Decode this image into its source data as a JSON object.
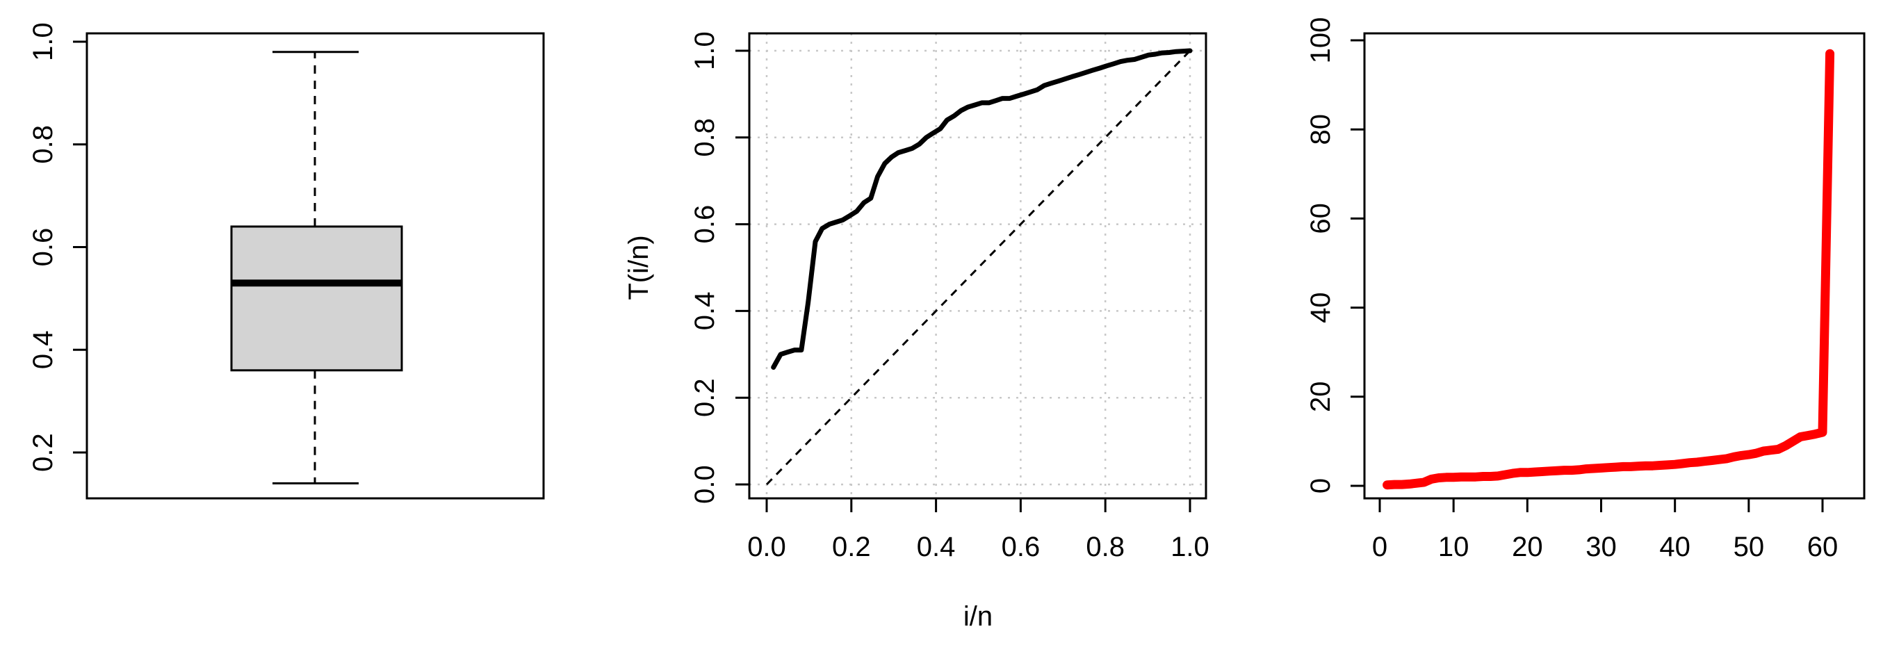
{
  "chart_data": [
    {
      "type": "box",
      "ylim": [
        0.1,
        1.0
      ],
      "yticks": [
        "0.2",
        "0.4",
        "0.6",
        "0.8",
        "1.0"
      ],
      "ytick_values": [
        0.2,
        0.4,
        0.6,
        0.8,
        1.0
      ],
      "stats": {
        "min": 0.14,
        "q1": 0.36,
        "median": 0.53,
        "q3": 0.64,
        "max": 0.98
      },
      "box_color": "#d3d3d3",
      "grid": false
    },
    {
      "type": "line",
      "xlabel": "i/n",
      "ylabel": "T(i/n)",
      "xlim": [
        0.0,
        1.0
      ],
      "ylim": [
        0.0,
        1.0
      ],
      "xticks": [
        "0.0",
        "0.2",
        "0.4",
        "0.6",
        "0.8",
        "1.0"
      ],
      "xtick_values": [
        0.0,
        0.2,
        0.4,
        0.6,
        0.8,
        1.0
      ],
      "yticks": [
        "0.0",
        "0.2",
        "0.4",
        "0.6",
        "0.8",
        "1.0"
      ],
      "ytick_values": [
        0.0,
        0.2,
        0.4,
        0.6,
        0.8,
        1.0
      ],
      "grid": true,
      "series": [
        {
          "color": "#000000",
          "style": "solid",
          "x": [
            0.016,
            0.033,
            0.049,
            0.066,
            0.082,
            0.098,
            0.115,
            0.131,
            0.148,
            0.164,
            0.18,
            0.197,
            0.213,
            0.23,
            0.246,
            0.262,
            0.279,
            0.295,
            0.311,
            0.328,
            0.344,
            0.361,
            0.377,
            0.393,
            0.41,
            0.426,
            0.443,
            0.459,
            0.475,
            0.492,
            0.508,
            0.525,
            0.541,
            0.557,
            0.574,
            0.59,
            0.607,
            0.623,
            0.639,
            0.656,
            0.672,
            0.689,
            0.705,
            0.721,
            0.738,
            0.754,
            0.77,
            0.787,
            0.803,
            0.82,
            0.836,
            0.852,
            0.869,
            0.885,
            0.902,
            0.918,
            0.934,
            0.951,
            0.967,
            0.984,
            1.0
          ],
          "y": [
            0.27,
            0.3,
            0.305,
            0.31,
            0.31,
            0.42,
            0.56,
            0.59,
            0.6,
            0.605,
            0.61,
            0.62,
            0.63,
            0.65,
            0.66,
            0.71,
            0.74,
            0.755,
            0.765,
            0.77,
            0.775,
            0.785,
            0.8,
            0.81,
            0.82,
            0.84,
            0.85,
            0.862,
            0.87,
            0.875,
            0.88,
            0.88,
            0.885,
            0.89,
            0.89,
            0.895,
            0.9,
            0.905,
            0.91,
            0.92,
            0.925,
            0.93,
            0.935,
            0.94,
            0.945,
            0.95,
            0.955,
            0.96,
            0.965,
            0.97,
            0.975,
            0.978,
            0.98,
            0.985,
            0.99,
            0.992,
            0.995,
            0.996,
            0.998,
            0.999,
            1.0
          ]
        },
        {
          "color": "#000000",
          "style": "dashed",
          "x": [
            0.0,
            1.0
          ],
          "y": [
            0.0,
            1.0
          ]
        }
      ]
    },
    {
      "type": "line",
      "xlim": [
        0,
        63
      ],
      "ylim": [
        0,
        100
      ],
      "xticks": [
        "0",
        "10",
        "20",
        "30",
        "40",
        "50",
        "60"
      ],
      "xtick_values": [
        0,
        10,
        20,
        30,
        40,
        50,
        60
      ],
      "yticks": [
        "0",
        "20",
        "40",
        "60",
        "80",
        "100"
      ],
      "ytick_values": [
        0,
        20,
        40,
        60,
        80,
        100
      ],
      "grid": false,
      "series": [
        {
          "color": "#ff0000",
          "style": "solid",
          "x": [
            1,
            2,
            3,
            4,
            5,
            6,
            7,
            8,
            9,
            10,
            11,
            12,
            13,
            14,
            15,
            16,
            17,
            18,
            19,
            20,
            21,
            22,
            23,
            24,
            25,
            26,
            27,
            28,
            29,
            30,
            31,
            32,
            33,
            34,
            35,
            36,
            37,
            38,
            39,
            40,
            41,
            42,
            43,
            44,
            45,
            46,
            47,
            48,
            49,
            50,
            51,
            52,
            53,
            54,
            55,
            56,
            57,
            58,
            59,
            60,
            61
          ],
          "y": [
            0.2,
            0.3,
            0.3,
            0.4,
            0.6,
            0.8,
            1.5,
            1.8,
            1.9,
            1.9,
            2.0,
            2.0,
            2.0,
            2.1,
            2.1,
            2.2,
            2.5,
            2.8,
            3.0,
            3.0,
            3.1,
            3.2,
            3.3,
            3.4,
            3.5,
            3.5,
            3.6,
            3.8,
            3.9,
            4.0,
            4.1,
            4.2,
            4.3,
            4.3,
            4.4,
            4.5,
            4.5,
            4.6,
            4.7,
            4.8,
            5.0,
            5.2,
            5.3,
            5.5,
            5.7,
            5.9,
            6.1,
            6.5,
            6.8,
            7.0,
            7.3,
            7.8,
            8.0,
            8.2,
            9.0,
            10.0,
            11.0,
            11.3,
            11.6,
            12.0,
            97.0
          ]
        }
      ]
    }
  ]
}
